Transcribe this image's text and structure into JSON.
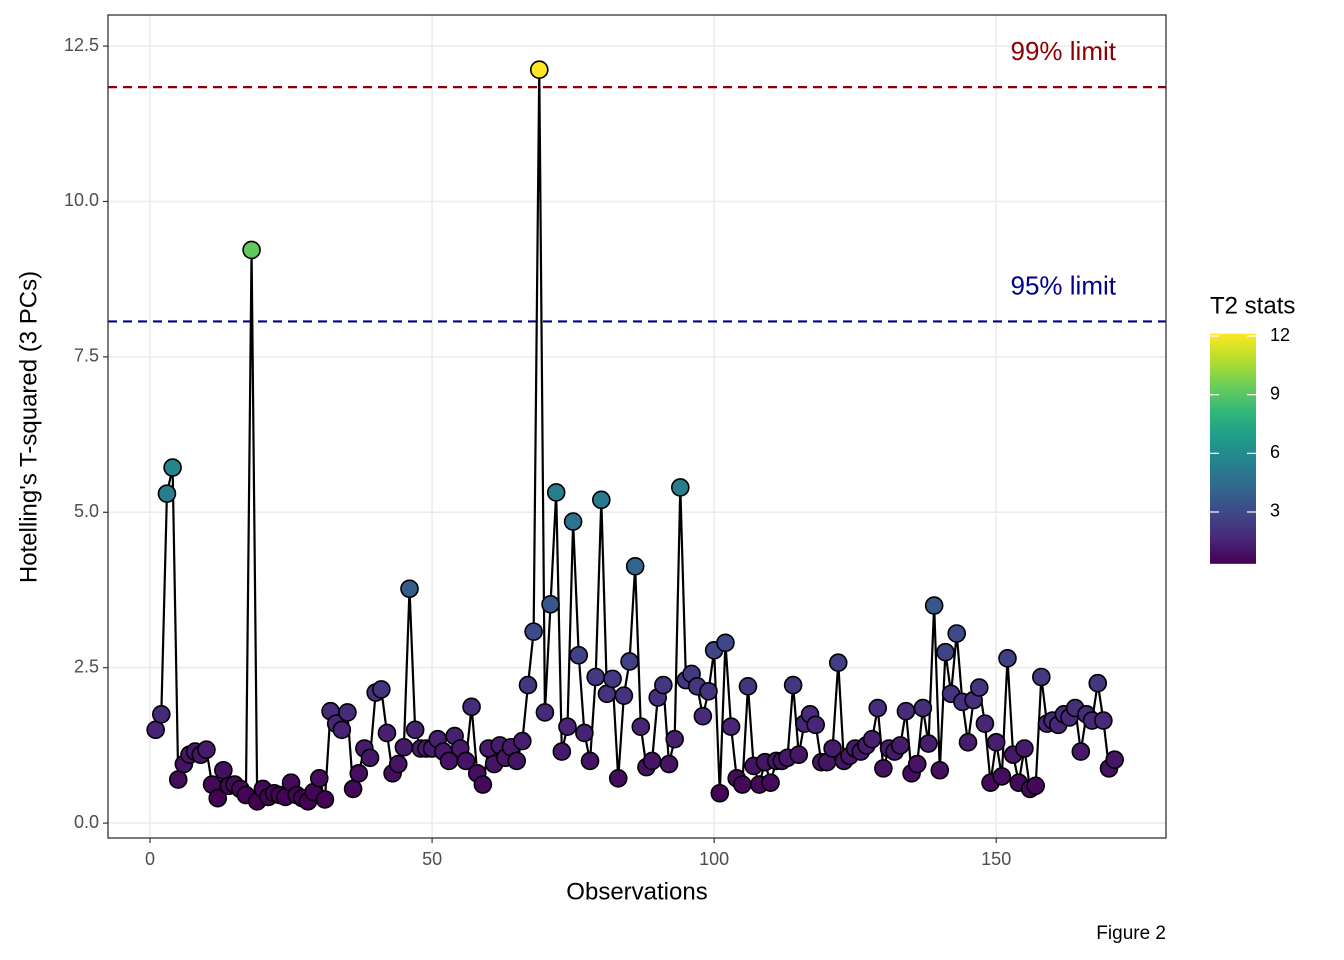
{
  "chart_data": {
    "type": "line",
    "x_label": "Observations",
    "y_label": "Hotelling's T-squared (3 PCs)",
    "caption": "Figure 2",
    "x": [
      1,
      2,
      3,
      4,
      5,
      6,
      7,
      8,
      9,
      10,
      11,
      12,
      13,
      14,
      15,
      16,
      17,
      18,
      19,
      20,
      21,
      22,
      23,
      24,
      25,
      26,
      27,
      28,
      29,
      30,
      31,
      32,
      33,
      34,
      35,
      36,
      37,
      38,
      39,
      40,
      41,
      42,
      43,
      44,
      45,
      46,
      47,
      48,
      49,
      50,
      51,
      52,
      53,
      54,
      55,
      56,
      57,
      58,
      59,
      60,
      61,
      62,
      63,
      64,
      65,
      66,
      67,
      68,
      69,
      70,
      71,
      72,
      73,
      74,
      75,
      76,
      77,
      78,
      79,
      80,
      81,
      82,
      83,
      84,
      85,
      86,
      87,
      88,
      89,
      90,
      91,
      92,
      93,
      94,
      95,
      96,
      97,
      98,
      99,
      100,
      101,
      102,
      103,
      104,
      105,
      106,
      107,
      108,
      109,
      110,
      111,
      112,
      113,
      114,
      115,
      116,
      117,
      118,
      119,
      120,
      121,
      122,
      123,
      124,
      125,
      126,
      127,
      128,
      129,
      130,
      131,
      132,
      133,
      134,
      135,
      136,
      137,
      138,
      139,
      140,
      141,
      142,
      143,
      144,
      145,
      146,
      147,
      148,
      149,
      150,
      151,
      152,
      153,
      154,
      155,
      156,
      157,
      158,
      159,
      160,
      161,
      162,
      163,
      164,
      165,
      166,
      167,
      168,
      169,
      170,
      171
    ],
    "values": [
      1.5,
      1.75,
      5.3,
      5.72,
      0.7,
      0.95,
      1.1,
      1.15,
      1.1,
      1.18,
      0.62,
      0.4,
      0.85,
      0.6,
      0.62,
      0.55,
      0.45,
      9.22,
      0.35,
      0.55,
      0.42,
      0.48,
      0.45,
      0.42,
      0.65,
      0.45,
      0.4,
      0.35,
      0.5,
      0.72,
      0.38,
      1.8,
      1.6,
      1.5,
      1.78,
      0.55,
      0.8,
      1.2,
      1.05,
      2.1,
      2.15,
      1.45,
      0.8,
      0.95,
      1.22,
      3.77,
      1.5,
      1.2,
      1.2,
      1.2,
      1.35,
      1.15,
      1.0,
      1.4,
      1.2,
      1.0,
      1.87,
      0.8,
      0.62,
      1.2,
      0.95,
      1.25,
      1.05,
      1.22,
      1.0,
      1.32,
      2.22,
      3.08,
      12.12,
      1.78,
      3.52,
      5.32,
      1.15,
      1.55,
      4.85,
      2.7,
      1.45,
      1.0,
      2.35,
      5.2,
      2.08,
      2.32,
      0.72,
      2.05,
      2.6,
      4.13,
      1.55,
      0.9,
      1.0,
      2.02,
      2.22,
      0.95,
      1.35,
      5.4,
      2.3,
      2.4,
      2.2,
      1.72,
      2.12,
      2.78,
      0.48,
      2.9,
      1.55,
      0.72,
      0.62,
      2.2,
      0.92,
      0.62,
      0.98,
      0.65,
      1.0,
      1.0,
      1.05,
      2.22,
      1.1,
      1.6,
      1.75,
      1.58,
      0.98,
      0.98,
      1.2,
      2.58,
      1.0,
      1.08,
      1.2,
      1.15,
      1.25,
      1.35,
      1.85,
      0.88,
      1.2,
      1.15,
      1.25,
      1.8,
      0.8,
      0.95,
      1.85,
      1.28,
      3.5,
      0.85,
      2.75,
      2.08,
      3.05,
      1.95,
      1.3,
      1.98,
      2.18,
      1.6,
      0.65,
      1.3,
      0.75,
      2.65,
      1.1,
      0.65,
      1.2,
      0.55,
      0.6,
      2.35,
      1.6,
      1.65,
      1.58,
      1.75,
      1.7,
      1.85,
      1.15,
      1.75,
      1.65,
      2.25,
      1.65,
      0.88,
      1.02
    ],
    "line_color": "#000000",
    "colorbar": {
      "title": "T2 stats",
      "range": [
        0.35,
        12.12
      ],
      "ticks": [
        3,
        6,
        9,
        12
      ],
      "colormap": [
        "#440154",
        "#482878",
        "#3e4989",
        "#31688e",
        "#26828e",
        "#1f9e89",
        "#35b779",
        "#6ece58",
        "#b5de2b",
        "#fde725"
      ]
    },
    "reference_lines": [
      {
        "value": 11.84,
        "label": "99% limit",
        "color": "#8b0000"
      },
      {
        "value": 8.07,
        "label": "95% limit",
        "color": "#00008b"
      }
    ],
    "xlim": [
      -7.45,
      180.1
    ],
    "ylim": [
      -0.24,
      13.0
    ],
    "xticks": [
      0,
      50,
      100,
      150
    ],
    "yticks": [
      {
        "value": 0,
        "label": "0.0"
      },
      2.5,
      {
        "value": 5,
        "label": "5.0"
      },
      7.5,
      {
        "value": 10,
        "label": "10.0"
      },
      12.5
    ],
    "grid": true
  }
}
